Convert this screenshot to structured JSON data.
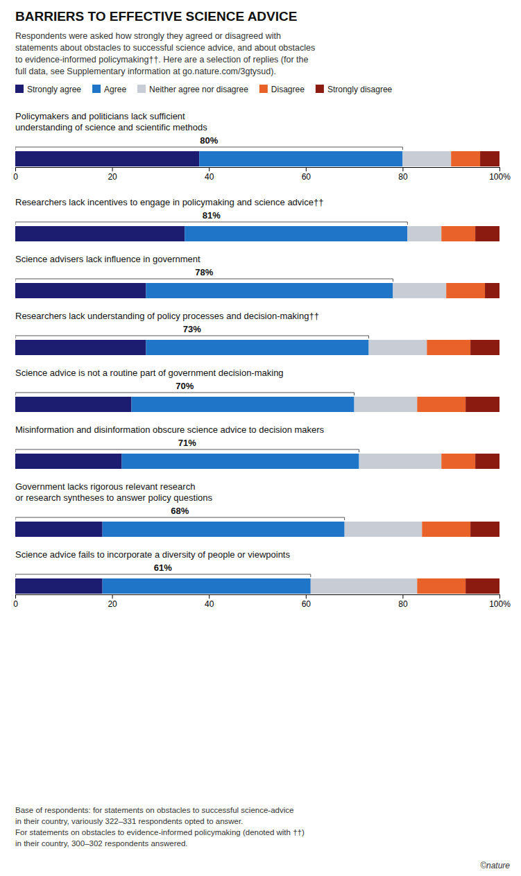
{
  "chart_data": {
    "type": "bar",
    "orientation": "horizontal",
    "stacked": true,
    "title": "BARRIERS TO EFFECTIVE SCIENCE ADVICE",
    "subtitle": "Respondents were asked how strongly they agreed or disagreed with\nstatements about obstacles to successful science advice, and about obstacles\nto evidence-informed policymaking††. Here are a selection of replies (for the\nfull data, see Supplementary information at go.nature.com/3gtysud).",
    "categories": [
      "Policymakers and politicians lack sufficient\nunderstanding of science and scientific methods",
      "Researchers lack incentives to engage in policymaking and science advice††",
      "Science advisers lack influence in government",
      "Researchers lack understanding of policy processes and decision-making††",
      "Science advice is not a routine part of government decision-making",
      "Misinformation and disinformation obscure science advice to decision makers",
      "Government lacks rigorous relevant research\nor research syntheses to answer policy questions",
      "Science advice fails to incorporate a diversity of people or viewpoints"
    ],
    "series": [
      {
        "name": "Strongly agree",
        "color": "#1c1c70",
        "values": [
          38,
          35,
          27,
          27,
          24,
          22,
          18,
          18
        ]
      },
      {
        "name": "Agree",
        "color": "#1f76c8",
        "values": [
          42,
          46,
          51,
          46,
          46,
          49,
          50,
          43
        ]
      },
      {
        "name": "Neither agree nor disagree",
        "color": "#c8ccd4",
        "values": [
          10,
          7,
          11,
          12,
          13,
          17,
          16,
          22
        ]
      },
      {
        "name": "Disagree",
        "color": "#e8622a",
        "values": [
          6,
          7,
          8,
          9,
          10,
          7,
          10,
          10
        ]
      },
      {
        "name": "Strongly disagree",
        "color": "#8b1a10",
        "values": [
          4,
          5,
          3,
          6,
          7,
          5,
          6,
          7
        ]
      }
    ],
    "agree_totals": [
      80,
      81,
      78,
      73,
      70,
      71,
      68,
      61
    ],
    "agree_total_labels": [
      "80%",
      "81%",
      "78%",
      "73%",
      "70%",
      "71%",
      "68%",
      "61%"
    ],
    "xlim": [
      0,
      100
    ],
    "xticks": [
      0,
      20,
      40,
      60,
      80,
      {
        "value": 100,
        "label": "100%"
      }
    ],
    "grid": false,
    "legend": "top-left",
    "data_labels": false,
    "tick_labels": "x",
    "annotations": [
      "Base of respondents: for statements on obstacles to successful science-advice\nin their country, variously 322–331 respondents opted to answer.\nFor statements on obstacles to evidence-informed policymaking (denoted with ††)\nin their country, 300–302 respondents answered.",
      "©nature"
    ]
  }
}
